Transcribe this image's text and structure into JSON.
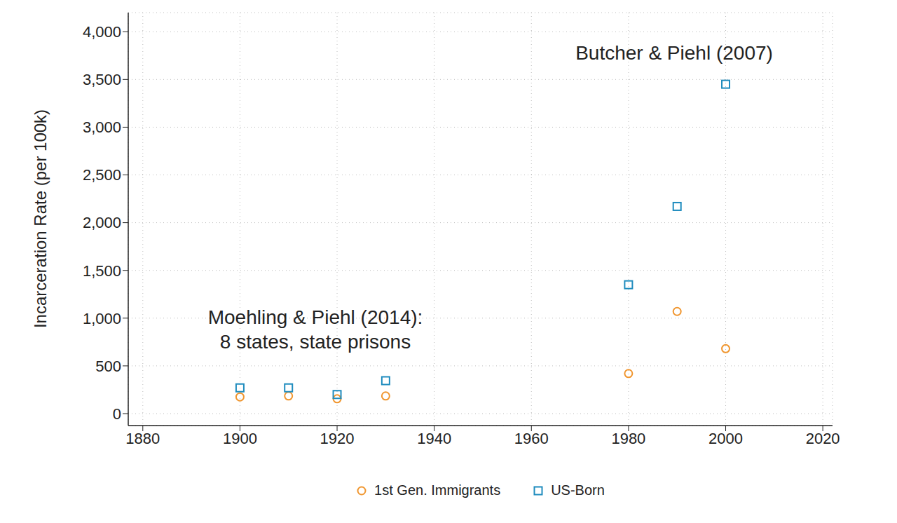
{
  "chart_data": {
    "type": "scatter",
    "y_label": "Incarceration Rate (per 100k)",
    "annotations": [
      "Butcher & Piehl (2007)",
      "Moehling & Piehl (2014):\n8 states, state prisons"
    ],
    "x": [
      1900,
      1910,
      1920,
      1930,
      1980,
      1990,
      2000
    ],
    "series": [
      {
        "name": "1st Gen. Immigrants",
        "color": "#f0962f",
        "marker": "circle",
        "values": [
          175,
          185,
          155,
          185,
          420,
          1070,
          680
        ]
      },
      {
        "name": "US-Born",
        "color": "#1f8cbe",
        "marker": "square",
        "values": [
          270,
          270,
          200,
          345,
          1350,
          2170,
          3450
        ]
      }
    ],
    "xlim": [
      1877,
      2022
    ],
    "xticks": [
      1880,
      1900,
      1920,
      1940,
      1960,
      1980,
      2000,
      2020
    ],
    "ylim": [
      -125,
      4200
    ],
    "yticks": [
      0,
      500,
      {
        "value": 1000,
        "label": "1,000"
      },
      {
        "value": 1500,
        "label": "1,500"
      },
      {
        "value": 2000,
        "label": "2,000"
      },
      {
        "value": 2500,
        "label": "2,500"
      },
      {
        "value": 3000,
        "label": "3,000"
      },
      {
        "value": 3500,
        "label": "3,500"
      },
      {
        "value": 4000,
        "label": "4,000"
      }
    ],
    "grid": true,
    "legend": "bottom"
  }
}
